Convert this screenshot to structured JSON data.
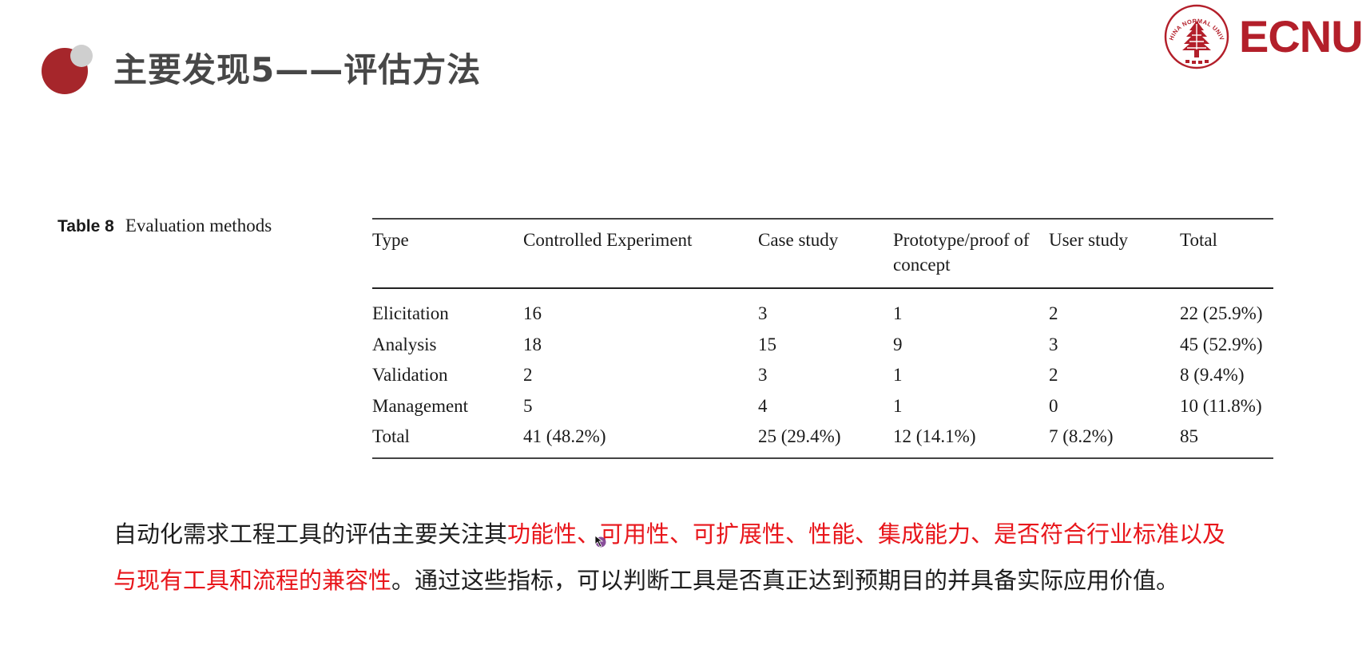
{
  "slide": {
    "title": "主要发现5——评估方法"
  },
  "logo": {
    "text": "ECNU",
    "seal_text": "EAST CHINA NORMAL UNIVERSITY"
  },
  "table": {
    "caption_number": "Table 8",
    "caption_text": "Evaluation methods",
    "headers": [
      "Type",
      "Controlled Experiment",
      "Case study",
      "Prototype/proof of concept",
      "User study",
      "Total"
    ],
    "rows": [
      [
        "Elicitation",
        "16",
        "3",
        "1",
        "2",
        "22 (25.9%)"
      ],
      [
        "Analysis",
        "18",
        "15",
        "9",
        "3",
        "45 (52.9%)"
      ],
      [
        "Validation",
        "2",
        "3",
        "1",
        "2",
        "8 (9.4%)"
      ],
      [
        "Management",
        "5",
        "4",
        "1",
        "0",
        "10 (11.8%)"
      ],
      [
        "Total",
        "41 (48.2%)",
        "25 (29.4%)",
        "12 (14.1%)",
        "7 (8.2%)",
        "85"
      ]
    ]
  },
  "paragraph": {
    "intro": "自动化需求工程工具的评估主要关注其",
    "highlight": "功能性、可用性、可扩展性、性能、集成能力、是否符合行业标准以及与现有工具和流程的兼容性",
    "conclusion": "。通过这些指标，可以判断工具是否真正达到预期目的并具备实际应用价值。"
  },
  "colors": {
    "brand_red": "#b31f2a",
    "bullet_red": "#a6262b",
    "bullet_gray": "#cfcfcf",
    "highlight_red": "#e8161b",
    "title_gray": "#474747"
  },
  "icons": {
    "title_bullet": "circle-bullet-icon",
    "logo_seal": "university-seal-icon",
    "cursor": "pointer-cursor-icon"
  }
}
